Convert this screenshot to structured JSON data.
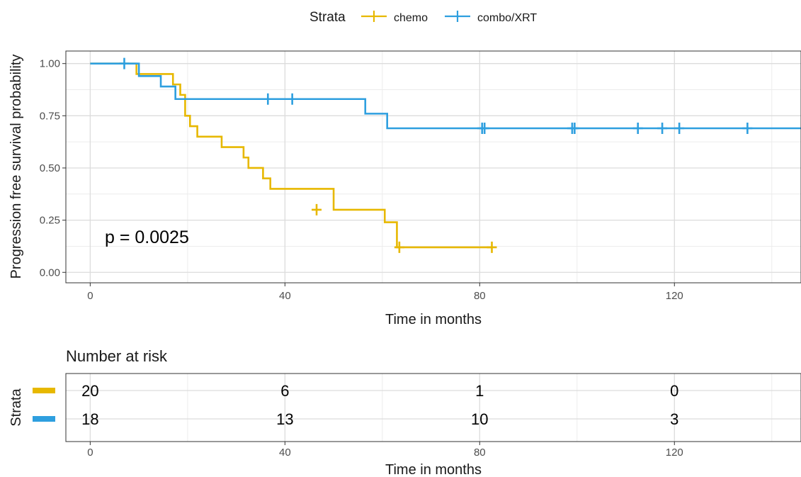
{
  "chart_data": [
    {
      "type": "line",
      "subtype": "kaplan-meier",
      "legend": {
        "title": "Strata",
        "position": "top"
      },
      "xlabel": "Time in months",
      "ylabel": "Progression free survival probability",
      "xlim": [
        -5,
        146
      ],
      "ylim": [
        -0.05,
        1.06
      ],
      "xticks": [
        0,
        40,
        80,
        120
      ],
      "xtick_labels": [
        "0",
        "40",
        "80",
        "120"
      ],
      "yticks": [
        0,
        0.25,
        0.5,
        0.75,
        1.0
      ],
      "ytick_labels": [
        "0.00",
        "0.25",
        "0.50",
        "0.75",
        "1.00"
      ],
      "grid": true,
      "annotation": {
        "text": "p = 0.0025",
        "x": 3,
        "y": 0.17
      },
      "series": [
        {
          "name": "chemo",
          "color": "#e7b800",
          "x": [
            0,
            9.5,
            17,
            18.5,
            19.5,
            20.5,
            22,
            27,
            31.5,
            32.5,
            35.5,
            37,
            50,
            60.5,
            63
          ],
          "y": [
            1.0,
            0.95,
            0.9,
            0.85,
            0.75,
            0.7,
            0.65,
            0.6,
            0.55,
            0.5,
            0.45,
            0.4,
            0.3,
            0.24,
            0.18
          ],
          "step_to": 0.12,
          "end_x": 82.5,
          "censors": [
            {
              "x": 46.5,
              "y": 0.3
            },
            {
              "x": 63.5,
              "y": 0.12
            },
            {
              "x": 82.5,
              "y": 0.12
            }
          ]
        },
        {
          "name": "combo/XRT",
          "color": "#2e9fdf",
          "x": [
            0,
            10,
            14.5,
            17.5,
            56.5,
            61
          ],
          "y": [
            1.0,
            0.94,
            0.89,
            0.83,
            0.76,
            0.69
          ],
          "end_x": 146,
          "censors": [
            {
              "x": 7,
              "y": 1.0
            },
            {
              "x": 36.5,
              "y": 0.83
            },
            {
              "x": 41.5,
              "y": 0.83
            },
            {
              "x": 80.5,
              "y": 0.69
            },
            {
              "x": 81,
              "y": 0.69
            },
            {
              "x": 99,
              "y": 0.69
            },
            {
              "x": 99.5,
              "y": 0.69
            },
            {
              "x": 112.5,
              "y": 0.69
            },
            {
              "x": 117.5,
              "y": 0.69
            },
            {
              "x": 121,
              "y": 0.69
            },
            {
              "x": 135,
              "y": 0.69
            }
          ]
        }
      ]
    },
    {
      "type": "table",
      "title": "Number at risk",
      "ylabel": "Strata",
      "xlabel": "Time in months",
      "xticks": [
        0,
        40,
        80,
        120
      ],
      "xtick_labels": [
        "0",
        "40",
        "80",
        "120"
      ],
      "rows": [
        {
          "color": "#e7b800",
          "values": [
            "20",
            "6",
            "1",
            "0"
          ]
        },
        {
          "color": "#2e9fdf",
          "values": [
            "18",
            "13",
            "10",
            "3"
          ]
        }
      ]
    }
  ]
}
